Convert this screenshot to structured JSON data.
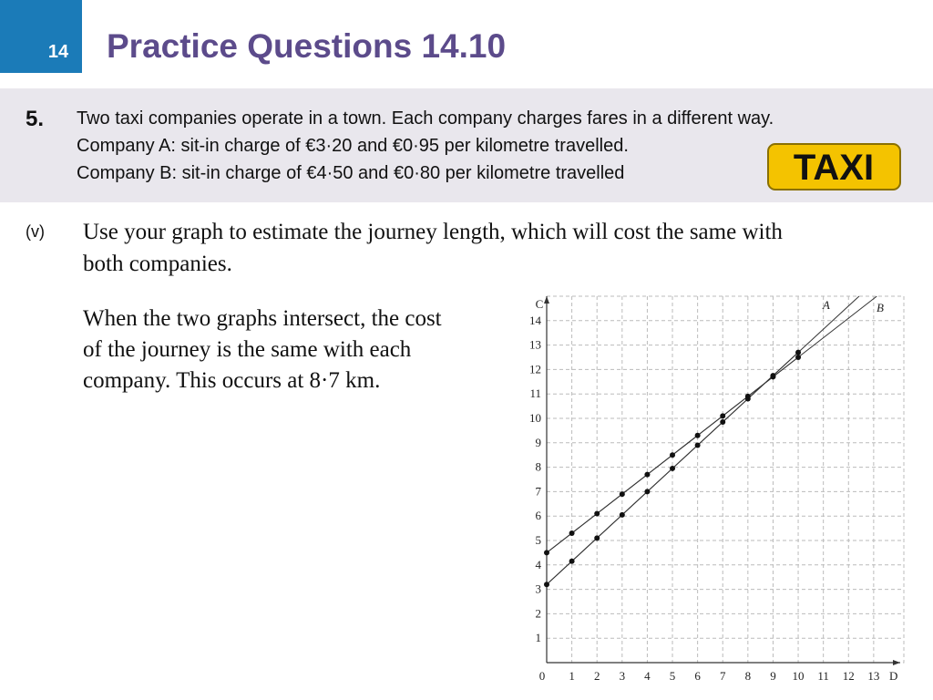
{
  "header": {
    "number": "14",
    "title": "Practice Questions 14.10"
  },
  "question": {
    "number": "5.",
    "lines": [
      "Two taxi companies operate in a town. Each company charges fares in a different way.",
      "Company A: sit-in charge of €3·20 and €0·95 per kilometre travelled.",
      "Company B: sit-in charge of €4·50 and €0·80 per kilometre travelled"
    ],
    "logo": "TAXI"
  },
  "part": {
    "label": "(v)",
    "lines": [
      "Use your graph to estimate the journey length, which will cost the same with",
      "both companies."
    ]
  },
  "answer": {
    "lines": [
      "When the two graphs intersect, the cost",
      "of the journey is the same with each",
      "company.  This occurs at 8·7 km."
    ]
  },
  "chart_data": {
    "type": "line",
    "xlabel": "D",
    "ylabel": "C",
    "x": [
      0,
      1,
      2,
      3,
      4,
      5,
      6,
      7,
      8,
      9,
      10
    ],
    "series": [
      {
        "name": "A",
        "color": "#333333",
        "values": [
          3.2,
          4.15,
          5.1,
          6.05,
          7.0,
          7.95,
          8.9,
          9.85,
          10.8,
          11.75,
          12.7
        ]
      },
      {
        "name": "B",
        "color": "#333333",
        "values": [
          4.5,
          5.3,
          6.1,
          6.9,
          7.7,
          8.5,
          9.3,
          10.1,
          10.9,
          11.7,
          12.5
        ]
      }
    ],
    "xlim": [
      0,
      14.2
    ],
    "ylim": [
      0,
      15
    ],
    "xticks": [
      0,
      1,
      2,
      3,
      4,
      5,
      6,
      7,
      8,
      9,
      10,
      11,
      12,
      13
    ],
    "yticks": [
      1,
      2,
      3,
      4,
      5,
      6,
      7,
      8,
      9,
      10,
      11,
      12,
      13,
      14
    ],
    "grid": true
  }
}
